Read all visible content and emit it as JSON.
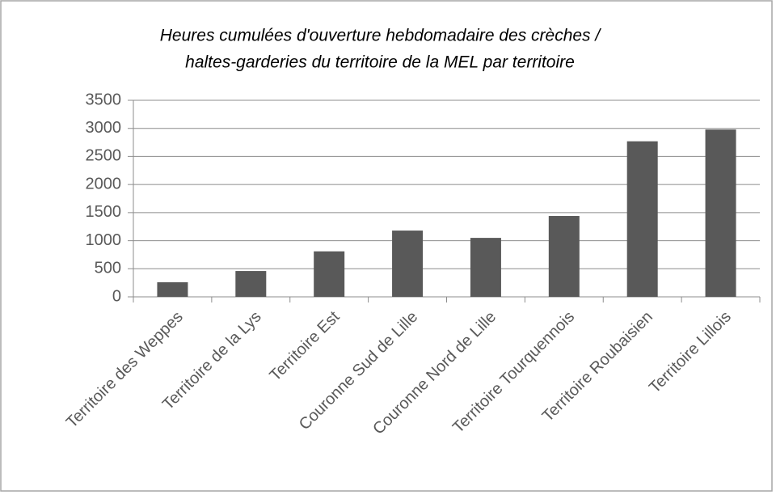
{
  "chart_data": {
    "type": "bar",
    "title": [
      "Heures cumulées d'ouverture hebdomadaire des crèches /",
      "haltes-garderies du territoire de la MEL par territoire"
    ],
    "categories": [
      "Territoire des Weppes",
      "Territoire de la Lys",
      "Territoire Est",
      "Couronne Sud de Lille",
      "Couronne Nord de Lille",
      "Territoire Tourquennois",
      "Territoire Roubaisien",
      "Territoire Lillois"
    ],
    "values": [
      260,
      460,
      810,
      1180,
      1050,
      1440,
      2770,
      2980
    ],
    "color": "#595959",
    "ylim": [
      0,
      3500
    ],
    "yticks": [
      0,
      500,
      1000,
      1500,
      2000,
      2500,
      3000,
      3500
    ],
    "grid": true
  }
}
